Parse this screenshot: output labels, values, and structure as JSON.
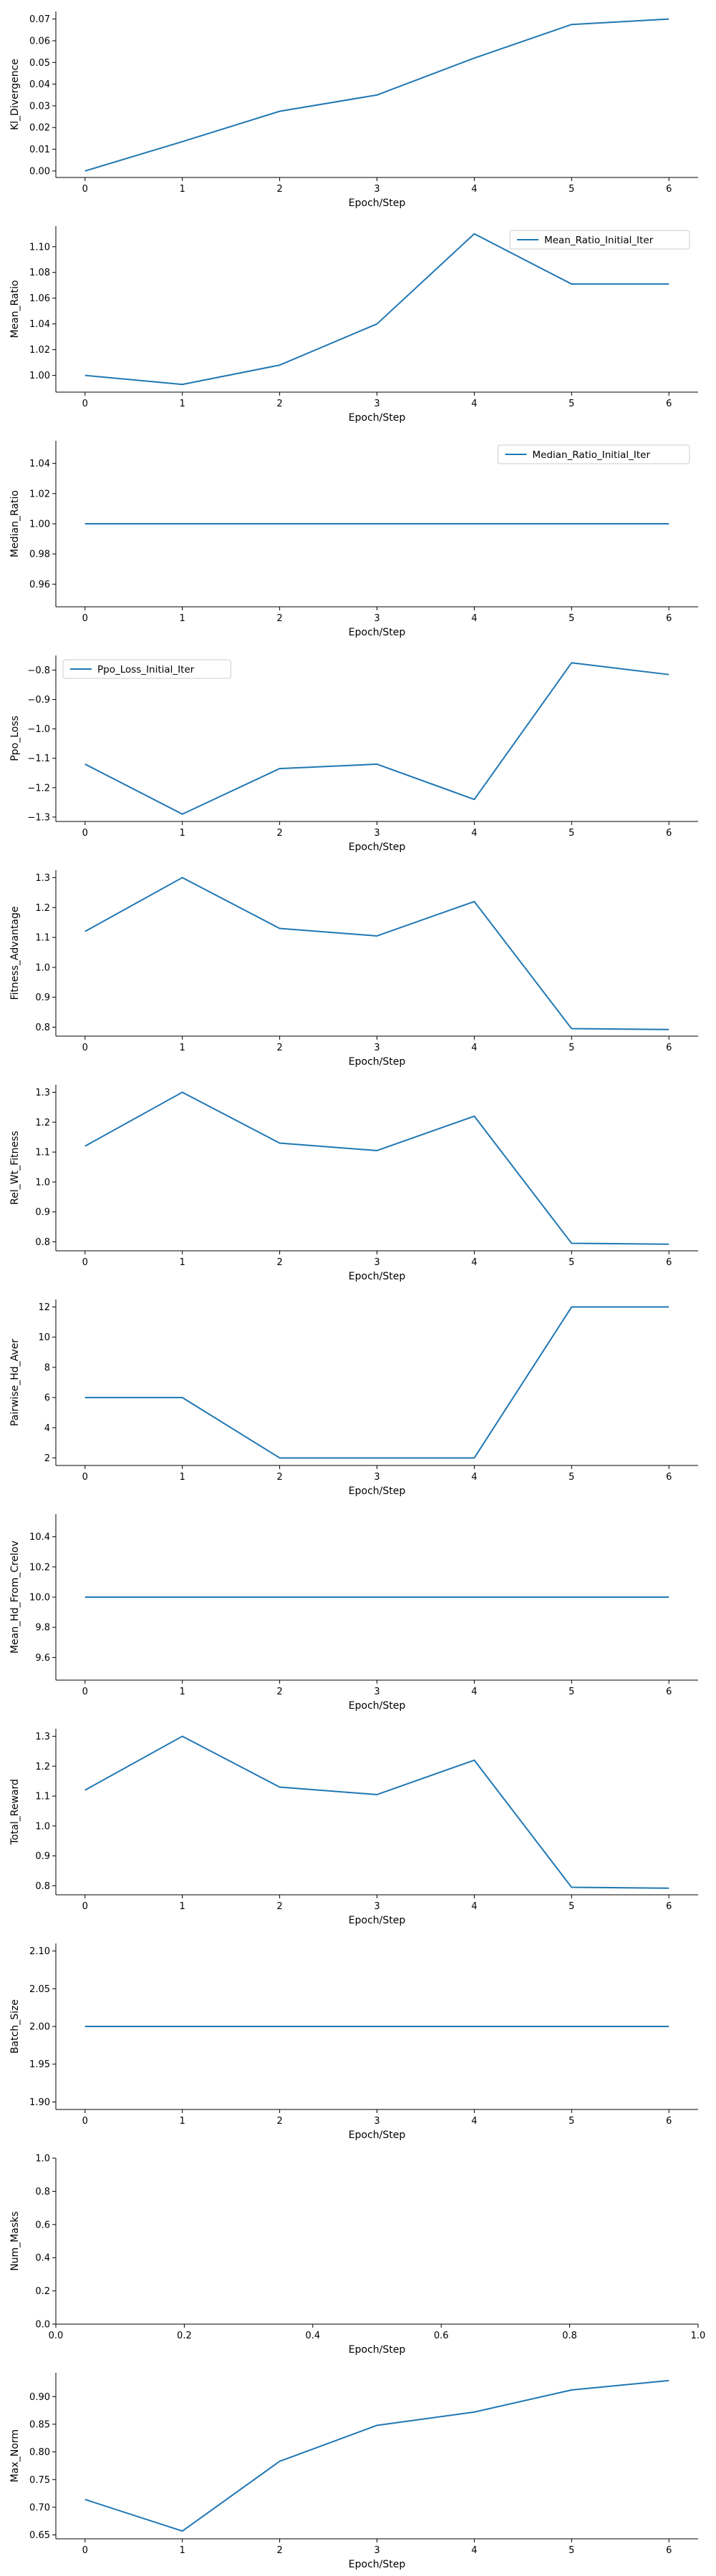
{
  "line_color": "#1f77b4",
  "chart_data": [
    {
      "type": "line",
      "xlabel": "Epoch/Step",
      "ylabel": "Kl_Divergence",
      "x": [
        0,
        1,
        2,
        3,
        4,
        5,
        6
      ],
      "series": [
        {
          "values": [
            0.0,
            0.0135,
            0.0275,
            0.035,
            0.052,
            0.0675,
            0.07
          ]
        }
      ],
      "xlim": [
        -0.3,
        6.3
      ],
      "ylim": [
        -0.003,
        0.0735
      ],
      "xticks": [
        0,
        1,
        2,
        3,
        4,
        5,
        6
      ],
      "yticks": [
        0.0,
        0.01,
        0.02,
        0.03,
        0.04,
        0.05,
        0.06,
        0.07
      ],
      "ytick_labels": [
        "0.00",
        "0.01",
        "0.02",
        "0.03",
        "0.04",
        "0.05",
        "0.06",
        "0.07"
      ],
      "legend": null
    },
    {
      "type": "line",
      "xlabel": "Epoch/Step",
      "ylabel": "Mean_Ratio",
      "x": [
        0,
        1,
        2,
        3,
        4,
        5,
        6
      ],
      "series": [
        {
          "name": "Mean_Ratio_Initial_Iter",
          "values": [
            1.0,
            0.993,
            1.008,
            1.04,
            1.11,
            1.071,
            1.071
          ]
        }
      ],
      "xlim": [
        -0.3,
        6.3
      ],
      "ylim": [
        0.987,
        1.116
      ],
      "xticks": [
        0,
        1,
        2,
        3,
        4,
        5,
        6
      ],
      "yticks": [
        1.0,
        1.02,
        1.04,
        1.06,
        1.08,
        1.1
      ],
      "ytick_labels": [
        "1.00",
        "1.02",
        "1.04",
        "1.06",
        "1.08",
        "1.10"
      ],
      "legend": "top-right"
    },
    {
      "type": "line",
      "xlabel": "Epoch/Step",
      "ylabel": "Median_Ratio",
      "x": [
        0,
        1,
        2,
        3,
        4,
        5,
        6
      ],
      "series": [
        {
          "name": "Median_Ratio_Initial_Iter",
          "values": [
            1.0,
            1.0,
            1.0,
            1.0,
            1.0,
            1.0,
            1.0
          ]
        }
      ],
      "xlim": [
        -0.3,
        6.3
      ],
      "ylim": [
        0.945,
        1.055
      ],
      "xticks": [
        0,
        1,
        2,
        3,
        4,
        5,
        6
      ],
      "yticks": [
        0.96,
        0.98,
        1.0,
        1.02,
        1.04
      ],
      "ytick_labels": [
        "0.96",
        "0.98",
        "1.00",
        "1.02",
        "1.04"
      ],
      "legend": "top-right"
    },
    {
      "type": "line",
      "xlabel": "Epoch/Step",
      "ylabel": "Ppo_Loss",
      "x": [
        0,
        1,
        2,
        3,
        4,
        5,
        6
      ],
      "series": [
        {
          "name": "Ppo_Loss_Initial_Iter",
          "values": [
            -1.12,
            -1.29,
            -1.135,
            -1.12,
            -1.24,
            -0.775,
            -0.815
          ]
        }
      ],
      "xlim": [
        -0.3,
        6.3
      ],
      "ylim": [
        -1.315,
        -0.75
      ],
      "xticks": [
        0,
        1,
        2,
        3,
        4,
        5,
        6
      ],
      "yticks": [
        -1.3,
        -1.2,
        -1.1,
        -1.0,
        -0.9,
        -0.8
      ],
      "ytick_labels": [
        "−1.3",
        "−1.2",
        "−1.1",
        "−1.0",
        "−0.9",
        "−0.8"
      ],
      "legend": "top-left"
    },
    {
      "type": "line",
      "xlabel": "Epoch/Step",
      "ylabel": "Fitness_Advantage",
      "x": [
        0,
        1,
        2,
        3,
        4,
        5,
        6
      ],
      "series": [
        {
          "values": [
            1.12,
            1.3,
            1.13,
            1.105,
            1.22,
            0.795,
            0.792
          ]
        }
      ],
      "xlim": [
        -0.3,
        6.3
      ],
      "ylim": [
        0.77,
        1.325
      ],
      "xticks": [
        0,
        1,
        2,
        3,
        4,
        5,
        6
      ],
      "yticks": [
        0.8,
        0.9,
        1.0,
        1.1,
        1.2,
        1.3
      ],
      "ytick_labels": [
        "0.8",
        "0.9",
        "1.0",
        "1.1",
        "1.2",
        "1.3"
      ],
      "legend": null
    },
    {
      "type": "line",
      "xlabel": "Epoch/Step",
      "ylabel": "Rel_Wt_Fitness",
      "x": [
        0,
        1,
        2,
        3,
        4,
        5,
        6
      ],
      "series": [
        {
          "values": [
            1.12,
            1.3,
            1.13,
            1.105,
            1.22,
            0.795,
            0.792
          ]
        }
      ],
      "xlim": [
        -0.3,
        6.3
      ],
      "ylim": [
        0.77,
        1.325
      ],
      "xticks": [
        0,
        1,
        2,
        3,
        4,
        5,
        6
      ],
      "yticks": [
        0.8,
        0.9,
        1.0,
        1.1,
        1.2,
        1.3
      ],
      "ytick_labels": [
        "0.8",
        "0.9",
        "1.0",
        "1.1",
        "1.2",
        "1.3"
      ],
      "legend": null
    },
    {
      "type": "line",
      "xlabel": "Epoch/Step",
      "ylabel": "Pairwise_Hd_Aver",
      "x": [
        0,
        1,
        2,
        3,
        4,
        5,
        6
      ],
      "series": [
        {
          "values": [
            6,
            6,
            2,
            2,
            2,
            12,
            12
          ]
        }
      ],
      "xlim": [
        -0.3,
        6.3
      ],
      "ylim": [
        1.5,
        12.5
      ],
      "xticks": [
        0,
        1,
        2,
        3,
        4,
        5,
        6
      ],
      "yticks": [
        2,
        4,
        6,
        8,
        10,
        12
      ],
      "ytick_labels": [
        "2",
        "4",
        "6",
        "8",
        "10",
        "12"
      ],
      "legend": null
    },
    {
      "type": "line",
      "xlabel": "Epoch/Step",
      "ylabel": "Mean_Hd_From_Crelov",
      "x": [
        0,
        1,
        2,
        3,
        4,
        5,
        6
      ],
      "series": [
        {
          "values": [
            10.0,
            10.0,
            10.0,
            10.0,
            10.0,
            10.0,
            10.0
          ]
        }
      ],
      "xlim": [
        -0.3,
        6.3
      ],
      "ylim": [
        9.45,
        10.55
      ],
      "xticks": [
        0,
        1,
        2,
        3,
        4,
        5,
        6
      ],
      "yticks": [
        9.6,
        9.8,
        10.0,
        10.2,
        10.4
      ],
      "ytick_labels": [
        "9.6",
        "9.8",
        "10.0",
        "10.2",
        "10.4"
      ],
      "legend": null
    },
    {
      "type": "line",
      "xlabel": "Epoch/Step",
      "ylabel": "Total_Reward",
      "x": [
        0,
        1,
        2,
        3,
        4,
        5,
        6
      ],
      "series": [
        {
          "values": [
            1.12,
            1.3,
            1.13,
            1.105,
            1.22,
            0.795,
            0.792
          ]
        }
      ],
      "xlim": [
        -0.3,
        6.3
      ],
      "ylim": [
        0.77,
        1.325
      ],
      "xticks": [
        0,
        1,
        2,
        3,
        4,
        5,
        6
      ],
      "yticks": [
        0.8,
        0.9,
        1.0,
        1.1,
        1.2,
        1.3
      ],
      "ytick_labels": [
        "0.8",
        "0.9",
        "1.0",
        "1.1",
        "1.2",
        "1.3"
      ],
      "legend": null
    },
    {
      "type": "line",
      "xlabel": "Epoch/Step",
      "ylabel": "Batch_Size",
      "x": [
        0,
        1,
        2,
        3,
        4,
        5,
        6
      ],
      "series": [
        {
          "values": [
            2.0,
            2.0,
            2.0,
            2.0,
            2.0,
            2.0,
            2.0
          ]
        }
      ],
      "xlim": [
        -0.3,
        6.3
      ],
      "ylim": [
        1.89,
        2.11
      ],
      "xticks": [
        0,
        1,
        2,
        3,
        4,
        5,
        6
      ],
      "yticks": [
        1.9,
        1.95,
        2.0,
        2.05,
        2.1
      ],
      "ytick_labels": [
        "1.90",
        "1.95",
        "2.00",
        "2.05",
        "2.10"
      ],
      "legend": null
    },
    {
      "type": "line",
      "xlabel": "Epoch/Step",
      "ylabel": "Num_Masks",
      "x": [],
      "series": [],
      "xlim": [
        0.0,
        1.0
      ],
      "ylim": [
        0.0,
        1.0
      ],
      "xticks": [
        0.0,
        0.2,
        0.4,
        0.6,
        0.8,
        1.0
      ],
      "xtick_labels": [
        "0.0",
        "0.2",
        "0.4",
        "0.6",
        "0.8",
        "1.0"
      ],
      "yticks": [
        0.0,
        0.2,
        0.4,
        0.6,
        0.8,
        1.0
      ],
      "ytick_labels": [
        "0.0",
        "0.2",
        "0.4",
        "0.6",
        "0.8",
        "1.0"
      ],
      "legend": null
    },
    {
      "type": "line",
      "xlabel": "Epoch/Step",
      "ylabel": "Max_Norm",
      "x": [
        0,
        1,
        2,
        3,
        4,
        5,
        6
      ],
      "series": [
        {
          "values": [
            0.714,
            0.657,
            0.783,
            0.848,
            0.872,
            0.912,
            0.929
          ]
        }
      ],
      "xlim": [
        -0.3,
        6.3
      ],
      "ylim": [
        0.643,
        0.943
      ],
      "xticks": [
        0,
        1,
        2,
        3,
        4,
        5,
        6
      ],
      "yticks": [
        0.65,
        0.7,
        0.75,
        0.8,
        0.85,
        0.9
      ],
      "ytick_labels": [
        "0.65",
        "0.70",
        "0.75",
        "0.80",
        "0.85",
        "0.90"
      ],
      "legend": null
    }
  ]
}
